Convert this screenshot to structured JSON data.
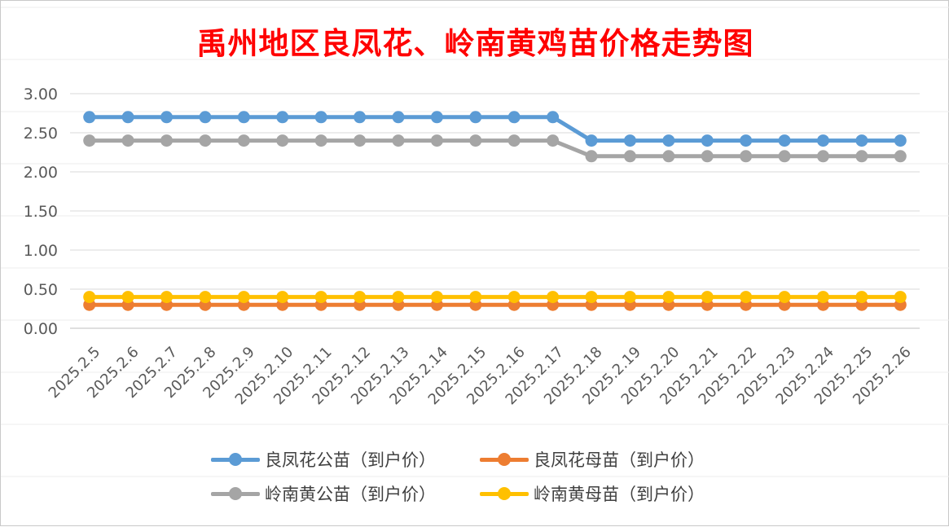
{
  "chart_data": {
    "type": "line",
    "title": "禹州地区良凤花、岭南黄鸡苗价格走势图",
    "xlabel": "",
    "ylabel": "",
    "ylim": [
      0,
      3
    ],
    "yticks": [
      "0.00",
      "0.50",
      "1.00",
      "1.50",
      "2.00",
      "2.50",
      "3.00"
    ],
    "grid": "horizontal",
    "legend_position": "bottom",
    "categories": [
      "2025.2.5",
      "2025.2.6",
      "2025.2.7",
      "2025.2.8",
      "2025.2.9",
      "2025.2.10",
      "2025.2.11",
      "2025.2.12",
      "2025.2.13",
      "2025.2.14",
      "2025.2.15",
      "2025.2.16",
      "2025.2.17",
      "2025.2.18",
      "2025.2.19",
      "2025.2.20",
      "2025.2.21",
      "2025.2.22",
      "2025.2.23",
      "2025.2.24",
      "2025.2.25",
      "2025.2.26"
    ],
    "series": [
      {
        "name": "良凤花公苗（到户价）",
        "color": "#5b9bd5",
        "values": [
          2.7,
          2.7,
          2.7,
          2.7,
          2.7,
          2.7,
          2.7,
          2.7,
          2.7,
          2.7,
          2.7,
          2.7,
          2.7,
          2.4,
          2.4,
          2.4,
          2.4,
          2.4,
          2.4,
          2.4,
          2.4,
          2.4
        ]
      },
      {
        "name": "良凤花母苗（到户价）",
        "color": "#ed7d31",
        "values": [
          0.3,
          0.3,
          0.3,
          0.3,
          0.3,
          0.3,
          0.3,
          0.3,
          0.3,
          0.3,
          0.3,
          0.3,
          0.3,
          0.3,
          0.3,
          0.3,
          0.3,
          0.3,
          0.3,
          0.3,
          0.3,
          0.3
        ]
      },
      {
        "name": "岭南黄公苗（到户价）",
        "color": "#a5a5a5",
        "values": [
          2.4,
          2.4,
          2.4,
          2.4,
          2.4,
          2.4,
          2.4,
          2.4,
          2.4,
          2.4,
          2.4,
          2.4,
          2.4,
          2.2,
          2.2,
          2.2,
          2.2,
          2.2,
          2.2,
          2.2,
          2.2,
          2.2
        ]
      },
      {
        "name": "岭南黄母苗（到户价）",
        "color": "#ffc000",
        "values": [
          0.4,
          0.4,
          0.4,
          0.4,
          0.4,
          0.4,
          0.4,
          0.4,
          0.4,
          0.4,
          0.4,
          0.4,
          0.4,
          0.4,
          0.4,
          0.4,
          0.4,
          0.4,
          0.4,
          0.4,
          0.4,
          0.4
        ]
      }
    ]
  }
}
